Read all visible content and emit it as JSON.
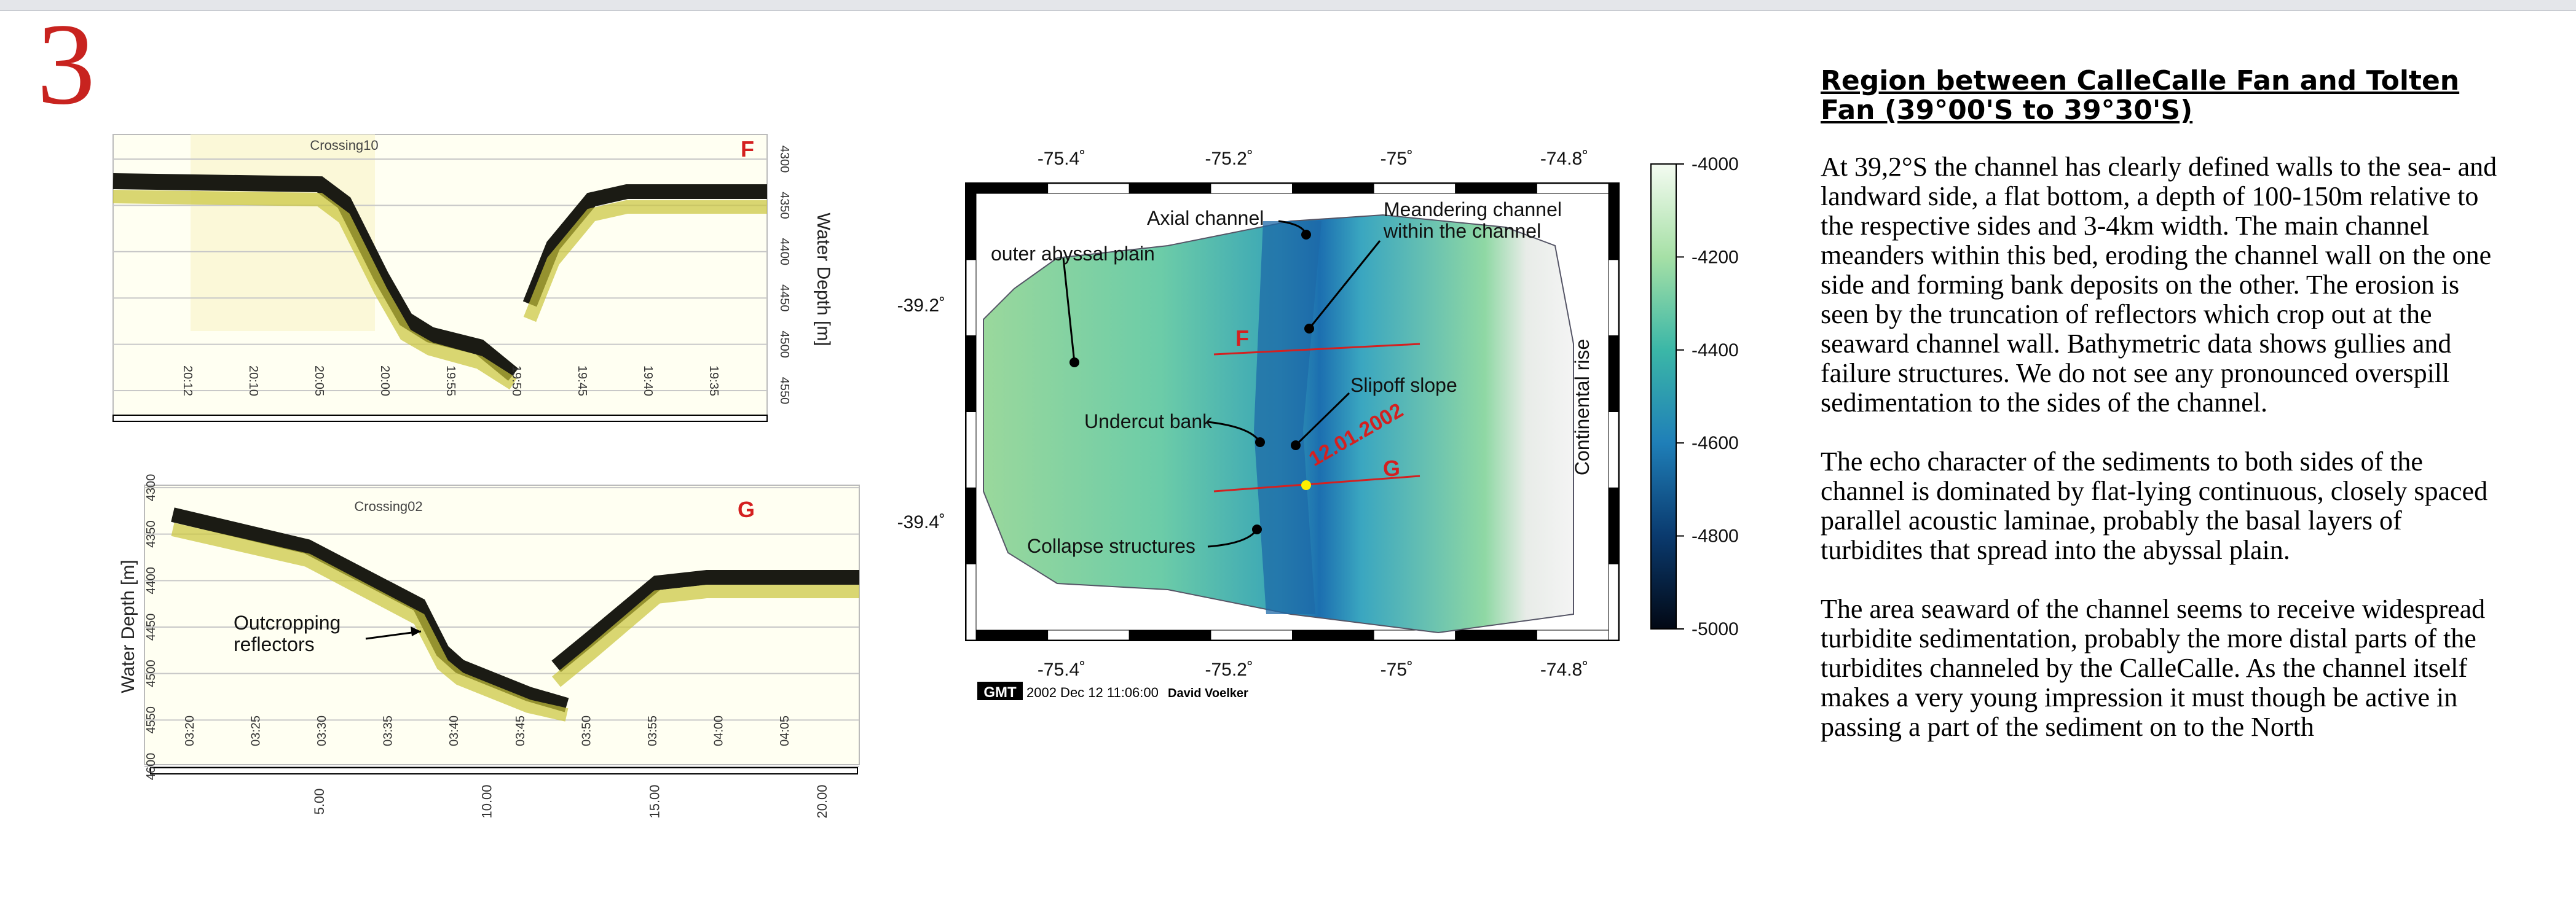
{
  "slide_number": "3",
  "profile_top": {
    "title": "Crossing10",
    "marker": "F",
    "axis_label": "Water Depth [m]",
    "depth_ticks": [
      "4300",
      "4350",
      "4400",
      "4450",
      "4500",
      "4550"
    ],
    "time_ticks": [
      "20:12",
      "20:10",
      "20:05",
      "20:00",
      "19:55",
      "19:50",
      "19:45",
      "19:40",
      "19:35"
    ]
  },
  "profile_bottom": {
    "title": "Crossing02",
    "marker": "G",
    "axis_label": "Water Depth [m]",
    "depth_ticks": [
      "4300",
      "4350",
      "4400",
      "4450",
      "4500",
      "4550",
      "4600"
    ],
    "time_ticks": [
      "03:20",
      "03:25",
      "03:30",
      "03:35",
      "03:40",
      "03:45",
      "03:50",
      "03:55",
      "04:00",
      "04:05"
    ],
    "distance_ticks": [
      "5.00",
      "10.00",
      "15.00",
      "20.00"
    ],
    "annotation": [
      "Outcropping",
      "reflectors"
    ]
  },
  "map": {
    "lon_ticks": [
      "-75.4˚",
      "-75.2˚",
      "-75˚",
      "-74.8˚"
    ],
    "lat_ticks": [
      "-39.2˚",
      "-39.4˚"
    ],
    "colorbar_ticks": [
      "-4000",
      "-4200",
      "-4400",
      "-4600",
      "-4800",
      "-5000"
    ],
    "annotations": {
      "axial": "Axial channel",
      "meander_1": "Meandering channel",
      "meander_2": "within the channel",
      "abyssal": "outer abyssal plain",
      "f": "F",
      "slipoff": "Slipoff slope",
      "undercut": "Undercut bank",
      "date": "12.01.2002",
      "g": "G",
      "collapse": "Collapse structures",
      "rise": "Continental rise"
    },
    "footer": {
      "gmt": "GMT",
      "timestamp": "2002 Dec 12 11:06:00",
      "author": "David Voelker"
    }
  },
  "text": {
    "title": "Region between CalleCalle Fan and Tolten Fan (39°00'S to 39°30'S)",
    "paragraphs": [
      "At 39,2°S the channel has clearly defined walls to the sea- and landward side, a flat bottom, a depth of 100-150m relative to the respective sides and 3-4km width. The main channel meanders within this bed, eroding the channel wall on the one side and forming bank deposits on the other. The erosion is seen by the truncation of reflectors which crop out at the seaward channel wall. Bathymetric data shows gullies and failure structures. We do not see any pronounced overspill sedimentation to the sides of the channel.",
      "The echo character of the sediments to both sides of the channel is dominated by flat-lying continuous, closely spaced parallel acoustic laminae, probably the basal layers of turbidites that spread into the abyssal plain.",
      "The area seaward of the channel seems to receive widespread turbidite sedimentation, probably the more distal parts of the turbidites channeled by the CalleCalle. As the channel itself makes a very young impression it must though be active in passing a part of the sediment on to the North"
    ]
  }
}
